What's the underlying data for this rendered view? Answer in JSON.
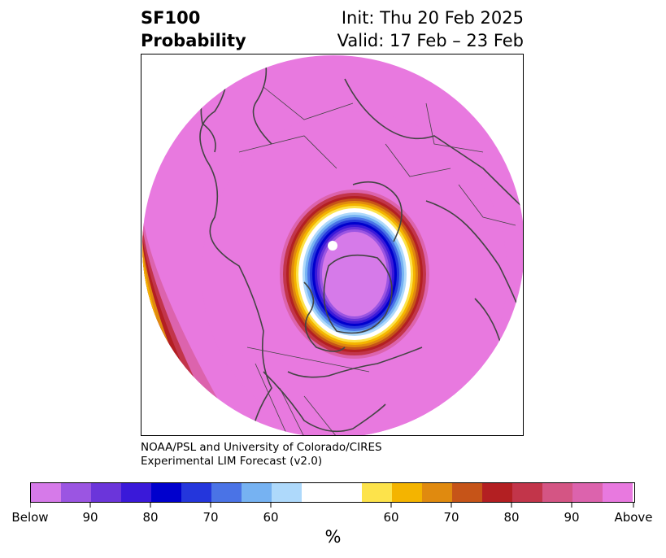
{
  "title": {
    "left_line1": "SF100",
    "left_line2": "Probability",
    "right_line1": "Init: Thu 20 Feb 2025",
    "right_line2": "Valid: 17 Feb – 23 Feb"
  },
  "credit": {
    "line1": "NOAA/PSL and University of Colorado/CIRES",
    "line2": "Experimental LIM Forecast (v2.0)"
  },
  "colorbar": {
    "unit": "%",
    "colors": [
      "#d67ae9",
      "#9b55e2",
      "#6b35da",
      "#3a19d9",
      "#0000cd",
      "#2436dc",
      "#4a73e6",
      "#76b2f2",
      "#aed9fb",
      "#ffffff",
      "#fde34b",
      "#f4b400",
      "#e08a0f",
      "#c65418",
      "#b31f22",
      "#c2354a",
      "#d45584",
      "#dc63ad",
      "#e879df"
    ],
    "labels": [
      "Below",
      "90",
      "80",
      "70",
      "60",
      "60",
      "70",
      "80",
      "90",
      "Above"
    ]
  },
  "map": {
    "background_color": "#e879df",
    "outline_color": "#444444"
  }
}
